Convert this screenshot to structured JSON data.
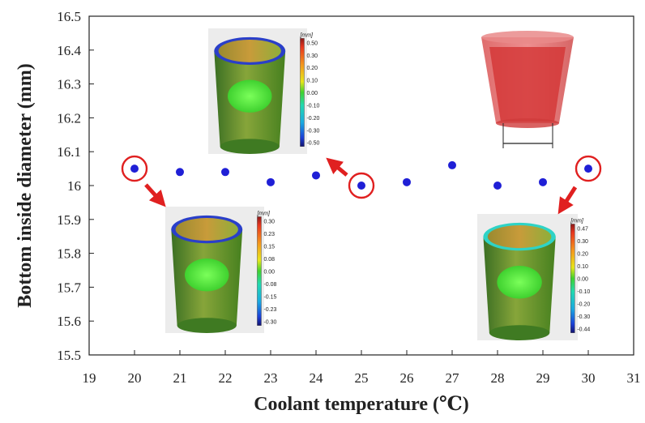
{
  "chart_data": {
    "type": "scatter",
    "title": "",
    "xlabel": "Coolant temperature (℃)",
    "ylabel": "Bottom inside diameter (mm)",
    "xlim": [
      19,
      31
    ],
    "ylim": [
      15.5,
      16.5
    ],
    "x_ticks": [
      "19",
      "20",
      "21",
      "22",
      "23",
      "24",
      "25",
      "26",
      "27",
      "28",
      "29",
      "30",
      "31"
    ],
    "y_ticks": [
      "15.5",
      "15.6",
      "15.7",
      "15.8",
      "15.9",
      "16",
      "16.1",
      "16.2",
      "16.3",
      "16.4",
      "16.5"
    ],
    "series": [
      {
        "name": "Bottom inside diameter",
        "color": "#1f1fd6",
        "x": [
          20,
          21,
          22,
          23,
          24,
          25,
          26,
          27,
          28,
          29,
          30
        ],
        "y": [
          16.05,
          16.04,
          16.04,
          16.01,
          16.03,
          16.0,
          16.01,
          16.06,
          16.0,
          16.01,
          16.05
        ]
      }
    ],
    "highlighted_points": [
      20,
      25,
      30
    ],
    "highlight_color": "#e02020",
    "insets": [
      {
        "name": "deviation-map-20C",
        "attached_to_x": 20,
        "unit": "[mm]",
        "scale_labels": [
          "0.30",
          "0.23",
          "0.15",
          "0.08",
          "0.00",
          "-0.08",
          "-0.15",
          "-0.23",
          "-0.30"
        ]
      },
      {
        "name": "deviation-map-25C",
        "attached_to_x": 25,
        "unit": "[mm]",
        "scale_labels": [
          "0.50",
          "0.30",
          "0.20",
          "0.10",
          "0.00",
          "-0.10",
          "-0.20",
          "-0.30",
          "-0.50"
        ]
      },
      {
        "name": "deviation-map-30C",
        "attached_to_x": 30,
        "unit": "[mm]",
        "scale_labels": [
          "0.47",
          "0.30",
          "0.20",
          "0.10",
          "0.00",
          "-0.10",
          "-0.20",
          "-0.30",
          "-0.44"
        ]
      }
    ]
  }
}
